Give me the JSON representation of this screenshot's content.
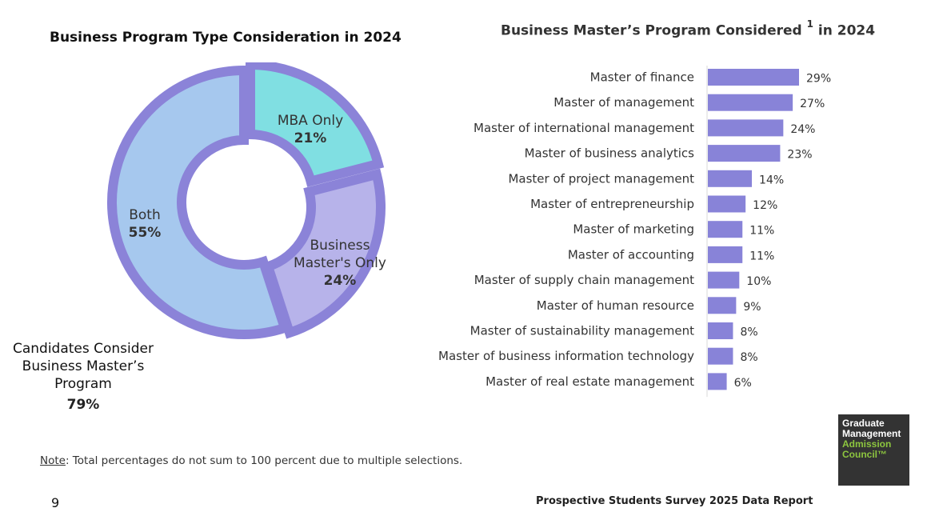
{
  "colors": {
    "mba_only": "#80dfe2",
    "business_masters_only": "#b7b3ea",
    "both": "#a6c8ee",
    "ring_border": "#8b83d8",
    "bar_fill": "#8883d8",
    "axis_line": "#d9d9d9",
    "logo_bg": "#333333",
    "logo_green": "#8dc63f"
  },
  "chart_data": [
    {
      "type": "pie",
      "title": "Business Program Type Consideration in 2024",
      "slices": [
        {
          "label": "MBA Only",
          "value": 21,
          "value_label": "21%"
        },
        {
          "label_lines": [
            "Business",
            "Master's Only"
          ],
          "value": 24,
          "value_label": "24%"
        },
        {
          "label": "Both",
          "value": 55,
          "value_label": "55%"
        }
      ],
      "annotation": {
        "lines": [
          "Candidates Consider",
          "Business Master’s",
          "Program"
        ],
        "value_label": "79%"
      }
    },
    {
      "type": "bar",
      "orientation": "horizontal",
      "title": "Business Master’s Program Considered",
      "title_superscript": "1",
      "title_suffix": "in 2024",
      "categories": [
        "Master of finance",
        "Master of management",
        "Master of international management",
        "Master of business analytics",
        "Master of project management",
        "Master of entrepreneurship",
        "Master of marketing",
        "Master of accounting",
        "Master of supply chain management",
        "Master of human resource",
        "Master of sustainability management",
        "Master of business information technology",
        "Master of real estate management"
      ],
      "values": [
        29,
        27,
        24,
        23,
        14,
        12,
        11,
        11,
        10,
        9,
        8,
        8,
        6
      ],
      "value_labels": [
        "29%",
        "27%",
        "24%",
        "23%",
        "14%",
        "12%",
        "11%",
        "11%",
        "10%",
        "9%",
        "8%",
        "8%",
        "6%"
      ],
      "xlim": [
        0,
        35
      ]
    }
  ],
  "footer": {
    "note_label": "Note",
    "note_text": ": Total percentages do not sum to 100 percent due to multiple selections.",
    "page_number": "9",
    "report_title": "Prospective Students Survey 2025 Data Report"
  },
  "logo": {
    "line1": "Graduate",
    "line2": "Management",
    "line3": "Admission",
    "line4": "Council™"
  }
}
